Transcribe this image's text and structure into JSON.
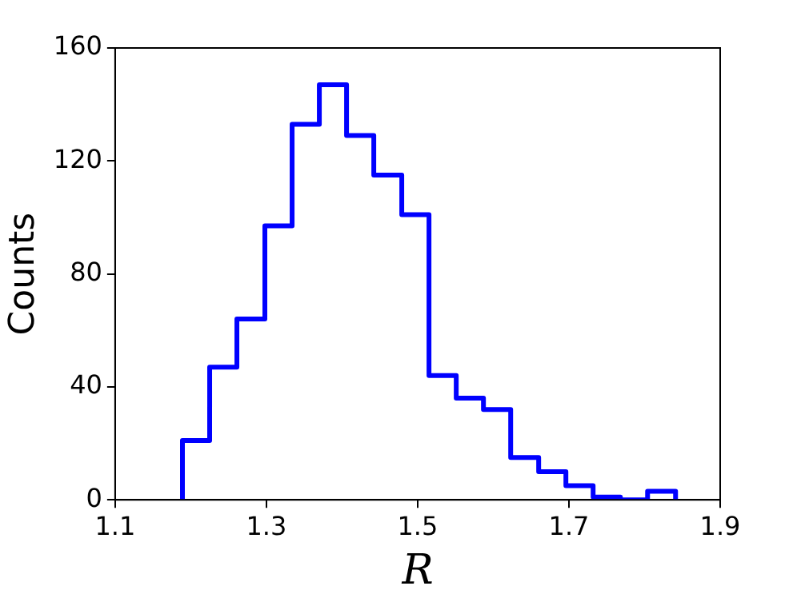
{
  "chart_data": {
    "type": "histogram",
    "xlabel": "R",
    "ylabel": "Counts",
    "bins": [
      1.189,
      1.225,
      1.261,
      1.298,
      1.334,
      1.37,
      1.406,
      1.442,
      1.479,
      1.515,
      1.551,
      1.587,
      1.623,
      1.66,
      1.696,
      1.732,
      1.768,
      1.804,
      1.841
    ],
    "values": [
      21,
      47,
      64,
      97,
      133,
      147,
      129,
      115,
      101,
      44,
      36,
      32,
      15,
      10,
      5,
      1,
      0,
      3
    ],
    "color": "#0000ff",
    "xlim": [
      1.1,
      1.9
    ],
    "xticks": [
      1.1,
      1.3,
      1.5,
      1.7,
      1.9
    ],
    "ylim": [
      0,
      160
    ],
    "yticks": [
      0,
      40,
      80,
      120,
      160
    ],
    "grid": false,
    "legend": false
  }
}
